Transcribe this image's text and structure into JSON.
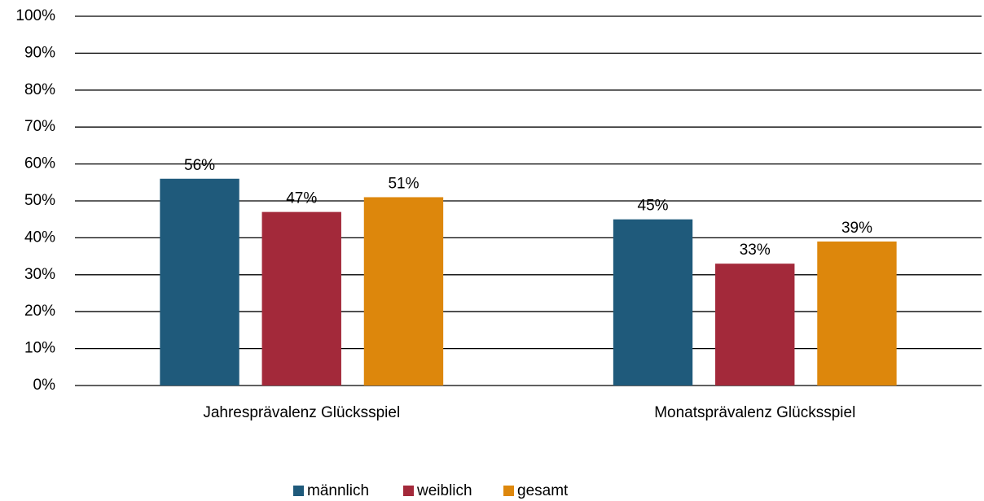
{
  "chart_data": {
    "type": "bar",
    "categories": [
      "Jahresprävalenz Glücksspiel",
      "Monatsprävalenz Glücksspiel"
    ],
    "series": [
      {
        "name": "männlich",
        "color": "#1f5a7b",
        "values": [
          56,
          45
        ],
        "value_labels": [
          "56%",
          "45%"
        ]
      },
      {
        "name": "weiblich",
        "color": "#a3293a",
        "values": [
          47,
          33
        ],
        "value_labels": [
          "47%",
          "33%"
        ]
      },
      {
        "name": "gesamt",
        "color": "#dd870c",
        "values": [
          51,
          39
        ],
        "value_labels": [
          "51%",
          "39%"
        ]
      }
    ],
    "ylim": [
      0,
      100
    ],
    "yticks": [
      {
        "value": 0,
        "label": "0%"
      },
      {
        "value": 10,
        "label": "10%"
      },
      {
        "value": 20,
        "label": "20%"
      },
      {
        "value": 30,
        "label": "30%"
      },
      {
        "value": 40,
        "label": "40%"
      },
      {
        "value": 50,
        "label": "50%"
      },
      {
        "value": 60,
        "label": "60%"
      },
      {
        "value": 70,
        "label": "70%"
      },
      {
        "value": 80,
        "label": "80%"
      },
      {
        "value": 90,
        "label": "90%"
      },
      {
        "value": 100,
        "label": "100%"
      }
    ],
    "grid": true,
    "legend": "bottom"
  }
}
